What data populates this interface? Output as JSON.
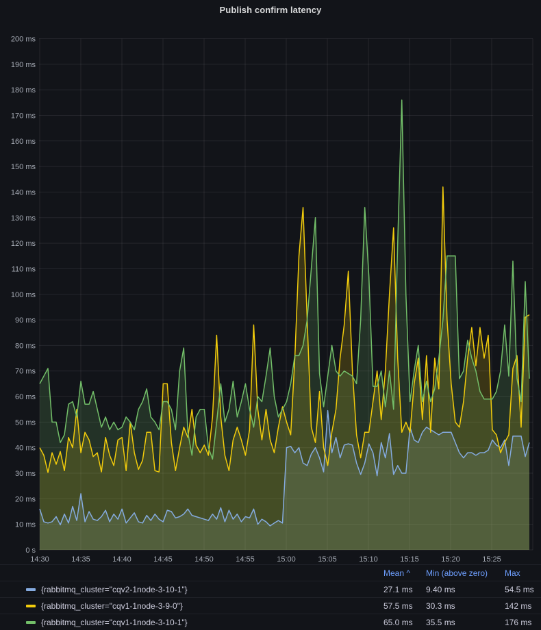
{
  "title": "Publish confirm latency",
  "colors": {
    "background": "#121419",
    "title_text": "#D8D9DA",
    "axis_text": "#A5AAB4",
    "grid": "rgba(204,204,220,0.10)",
    "legend_header": "#6E9FFF",
    "legend_text": "#CCCCDC"
  },
  "chart_data": {
    "type": "line",
    "title": "Publish confirm latency",
    "xlabel": "",
    "ylabel": "",
    "ylim": [
      0,
      200
    ],
    "grid": true,
    "legend_position": "bottom-table",
    "x_start": "14:30",
    "x_end": "15:30",
    "sample_interval_seconds": 30,
    "x_tick_labels": [
      "14:30",
      "14:35",
      "14:40",
      "14:45",
      "14:50",
      "14:55",
      "15:00",
      "15:05",
      "15:10",
      "15:15",
      "15:20",
      "15:25"
    ],
    "y_ticks": [
      "0 s",
      "10 ms",
      "20 ms",
      "30 ms",
      "40 ms",
      "50 ms",
      "60 ms",
      "70 ms",
      "80 ms",
      "90 ms",
      "100 ms",
      "110 ms",
      "120 ms",
      "130 ms",
      "140 ms",
      "150 ms",
      "160 ms",
      "170 ms",
      "180 ms",
      "190 ms",
      "200 ms"
    ],
    "legend": {
      "columns": [
        "Mean ^",
        "Min (above zero)",
        "Max"
      ]
    },
    "series": [
      {
        "name": "{rabbitmq_cluster=\"cqv2-1node-3-10-1\"}",
        "color": "#85ABE0",
        "stats": {
          "mean": "27.1 ms",
          "min": "9.40 ms",
          "max": "54.5 ms"
        },
        "values": [
          16,
          11,
          10.5,
          11,
          13,
          9.8,
          14,
          10.5,
          17,
          11.5,
          22,
          11,
          15,
          12,
          11.5,
          13,
          15.5,
          11,
          14,
          12,
          16,
          10.5,
          12.5,
          14.5,
          11,
          10.5,
          13.5,
          11.5,
          14,
          12,
          11,
          15.5,
          15,
          12.5,
          13,
          14,
          16,
          13.5,
          13,
          12.5,
          12,
          11.5,
          14,
          12,
          16.5,
          11,
          15.5,
          12,
          14,
          11,
          13,
          12.5,
          16,
          10,
          12,
          11,
          9.4,
          10.5,
          11.5,
          10.5,
          40,
          40.5,
          38,
          40,
          34,
          33,
          37.5,
          40,
          36,
          30.5,
          54.5,
          38,
          44,
          36,
          41,
          41.5,
          41,
          34,
          29.5,
          34,
          41.5,
          38,
          29,
          42,
          36,
          45.5,
          29.5,
          33,
          30,
          30,
          48,
          43,
          42,
          46,
          48,
          47,
          46,
          45,
          46,
          46,
          46,
          42,
          38,
          36,
          38,
          38,
          37,
          38,
          38,
          39,
          43,
          41,
          40,
          43,
          33,
          44.5,
          44.5,
          44.5,
          36.5,
          42
        ]
      },
      {
        "name": "{rabbitmq_cluster=\"cqv1-1node-3-9-0\"}",
        "color": "#F2CC0C",
        "stats": {
          "mean": "57.5 ms",
          "min": "30.3 ms",
          "max": "142 ms"
        },
        "values": [
          40,
          37,
          30.3,
          38,
          33.5,
          38.5,
          31,
          44,
          40,
          55,
          38,
          46,
          43,
          36.5,
          38,
          30.5,
          44,
          37,
          33,
          43,
          44,
          31,
          50,
          38,
          31.5,
          35,
          46,
          46,
          31,
          30.5,
          65,
          65,
          42,
          31,
          40,
          48,
          44,
          55,
          41,
          38,
          41,
          37,
          52,
          84,
          52,
          37,
          31,
          43,
          48,
          43,
          37,
          47,
          88,
          55,
          43,
          55,
          43,
          38,
          48,
          56,
          50,
          45,
          75,
          115,
          134,
          90,
          48,
          42,
          62,
          40,
          33,
          46,
          55,
          75,
          88,
          109,
          70,
          45,
          36,
          46,
          46,
          58,
          70,
          51,
          70,
          100,
          126,
          75,
          46,
          50,
          46,
          65,
          75,
          51,
          76,
          46,
          75,
          63,
          142,
          90,
          65,
          50,
          48,
          58,
          75,
          87,
          72,
          87,
          75,
          84,
          47,
          45,
          38,
          42,
          45,
          71,
          76,
          48,
          91,
          92
        ]
      },
      {
        "name": "{rabbitmq_cluster=\"cqv1-1node-3-10-1\"}",
        "color": "#73BF69",
        "stats": {
          "mean": "65.0 ms",
          "min": "35.5 ms",
          "max": "176 ms"
        },
        "values": [
          65,
          68,
          71,
          50,
          50,
          42,
          45,
          57,
          58,
          52,
          66,
          57,
          57,
          62,
          55,
          48,
          52,
          47,
          50,
          47,
          48,
          52,
          50,
          47,
          55,
          58,
          63,
          52,
          50,
          47,
          58,
          58,
          55,
          47,
          70,
          79,
          46,
          37,
          52,
          55,
          55,
          40,
          35.5,
          50,
          65,
          50,
          55,
          66,
          52,
          58,
          65,
          55,
          48,
          60,
          58,
          68,
          79,
          60,
          52,
          55,
          58,
          65,
          76,
          76,
          80,
          90,
          110,
          130,
          69,
          56,
          68,
          80,
          70,
          68,
          70,
          69,
          68,
          65,
          90,
          134,
          107,
          64,
          64,
          70,
          56,
          70,
          55,
          120,
          176,
          100,
          58,
          70,
          80,
          58,
          66,
          58,
          63,
          75,
          90,
          115,
          115,
          115,
          67,
          70,
          82,
          75,
          70,
          62,
          59,
          59,
          59,
          62,
          70,
          88,
          68,
          113,
          67,
          58,
          105,
          67
        ]
      }
    ]
  }
}
